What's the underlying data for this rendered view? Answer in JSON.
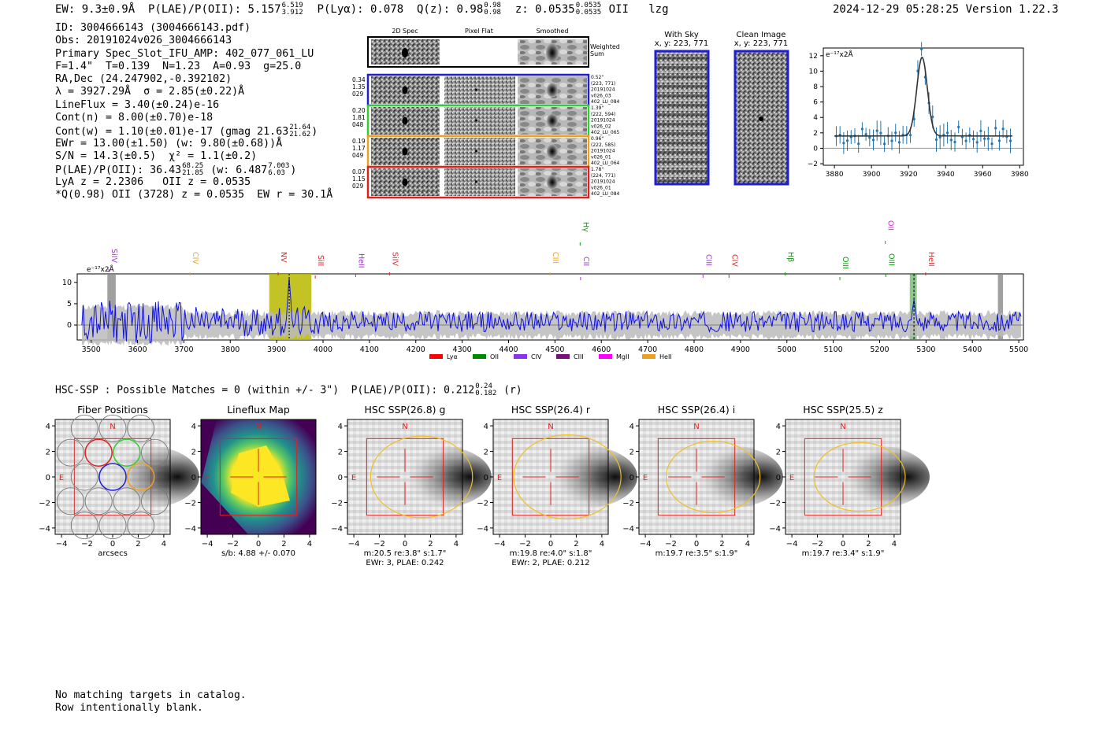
{
  "header": {
    "ew": "EW: 9.3±0.9Å",
    "plae_label": "P(LAE)/P(OII): 5.157",
    "plae_hi": "6.519",
    "plae_lo": "3.912",
    "plya": "P(Lyα): 0.078",
    "qz_label": "Q(z): 0.98",
    "qz_hi": "0.98",
    "qz_lo": "0.98",
    "z_label": "z: 0.0535",
    "z_hi": "0.0535",
    "z_lo": "0.0535",
    "line": "OII",
    "tag": "lzg",
    "timestamp": "2024-12-29 05:28:25",
    "version": "Version 1.22.3"
  },
  "info": {
    "id": "ID: 3004666143 (3004666143.pdf)",
    "obs": "Obs: 20191024v026_3004666143",
    "primary": "Primary Spec_Slot_IFU_AMP: 402_077_061_LU",
    "fiber": "F=1.4\"  T=0.139  N=1.23  A=0.93  g=25.0",
    "radec": "RA,Dec (24.247902,-0.392102)",
    "lambda": "λ = 3927.29Å  σ = 2.85(±0.22)Å",
    "lineflux": "LineFlux = 3.40(±0.24)e-16",
    "contn": "Cont(n) = 8.00(±0.70)e-18",
    "contw": "Cont(w) = 1.10(±0.01)e-17 (gmag 21.63",
    "contw_hi": "21.64",
    "contw_lo": "21.62",
    "ewr": "EWr = 13.00(±1.50) (w: 9.80(±0.68))Å",
    "sn": "S/N = 14.3(±0.5)  χ² = 1.1(±0.2)",
    "plae2": "P(LAE)/P(OII): 36.43",
    "plae2_hi": "68.25",
    "plae2_lo": "21.85",
    "plae2_w": "(w: 6.487",
    "plae2_w_hi": "7.003",
    "plae2_w_lo": "6.03",
    "lya": "LyA z = 2.2306   OII z = 0.0535",
    "q": "*Q(0.98) OII (3728) z = 0.0535  EW r = 30.1Å"
  },
  "stamps": {
    "col_labels": [
      "2D Spec",
      "Pixel Flat",
      "Smoothed"
    ],
    "weighted": [
      "Weighted",
      "Sum"
    ],
    "rows": [
      {
        "w": [
          "0.34",
          "1.35",
          "029"
        ],
        "info": [
          "0.52\"",
          "(223, 771)",
          "20191024",
          "v026_03",
          "402_LU_084"
        ],
        "color": "#1f1fd0"
      },
      {
        "w": [
          "0.20",
          "1.81",
          "048"
        ],
        "info": [
          "1.39\"",
          "(222, 594)",
          "20191024",
          "v026_02",
          "402_LU_065"
        ],
        "color": "#33cc33"
      },
      {
        "w": [
          "0.19",
          "1.17",
          "049"
        ],
        "info": [
          "0.96\"",
          "(222, 585)",
          "20191024",
          "v026_01",
          "402_LU_064"
        ],
        "color": "#f0a020"
      },
      {
        "w": [
          "0.07",
          "1.15",
          "029"
        ],
        "info": [
          "1.78\"",
          "(224, 771)",
          "20191024",
          "v026_01",
          "402_LU_084"
        ],
        "color": "#e02020"
      }
    ]
  },
  "sky": {
    "with_sky": "With Sky",
    "with_sky_xy": "x, y: 223, 771",
    "clean": "Clean Image",
    "clean_xy": "x, y: 223, 771"
  },
  "zoom_chart": {
    "unit": "e⁻¹⁷x2Å",
    "xticks": [
      "3880",
      "3900",
      "3920",
      "3940",
      "3960",
      "3980"
    ],
    "yticks": [
      "−2",
      "0",
      "2",
      "4",
      "6",
      "8",
      "10",
      "12"
    ]
  },
  "spectrum": {
    "unit": "e⁻¹⁷x2Å",
    "xticks": [
      "3500",
      "3600",
      "3700",
      "3800",
      "3900",
      "4000",
      "4100",
      "4200",
      "4300",
      "4400",
      "4500",
      "4600",
      "4700",
      "4800",
      "4900",
      "5000",
      "5100",
      "5200",
      "5300",
      "5400",
      "5500"
    ],
    "yticks": [
      "0",
      "5",
      "10"
    ],
    "lines": [
      {
        "label": "SiIV",
        "color": "#9933cc"
      },
      {
        "label": "CIV",
        "color": "#f0a020"
      },
      {
        "label": "NV",
        "color": "#e02020"
      },
      {
        "label": "SiII",
        "color": "#e02020"
      },
      {
        "label": "HeII",
        "color": "#9933cc"
      },
      {
        "label": "SiIV",
        "color": "#e02020"
      },
      {
        "label": "CIII",
        "color": "#f0a020"
      },
      {
        "label": "Hγ",
        "color": "#119911"
      },
      {
        "label": "CII",
        "color": "#9933cc"
      },
      {
        "label": "CIII",
        "color": "#9933cc"
      },
      {
        "label": "CIV",
        "color": "#e02020"
      },
      {
        "label": "Hβ",
        "color": "#119911"
      },
      {
        "label": "OIII",
        "color": "#119911"
      },
      {
        "label": "OII",
        "color": "#dd22dd"
      },
      {
        "label": "OIII",
        "color": "#119911"
      },
      {
        "label": "HeII",
        "color": "#e02020"
      }
    ],
    "legend": [
      {
        "label": "Lyα",
        "color": "#ff0000"
      },
      {
        "label": "OII",
        "color": "#008800"
      },
      {
        "label": "CIV",
        "color": "#8833ee"
      },
      {
        "label": "CIII",
        "color": "#771177"
      },
      {
        "label": "MgII",
        "color": "#ff00ff"
      },
      {
        "label": "HeII",
        "color": "#f0a020"
      }
    ]
  },
  "hsc": {
    "line": "HSC-SSP : Possible Matches = 0 (within +/- 3\")  P(LAE)/P(OII): 0.212",
    "hi": "0.24",
    "lo": "0.182",
    "band": "(r)"
  },
  "panels": [
    {
      "title": "Fiber Positions",
      "cap1": "arcsecs",
      "cap2": ""
    },
    {
      "title": "Lineflux Map",
      "cap1": "s/b: 4.88 +/- 0.070",
      "cap2": ""
    },
    {
      "title": "HSC SSP(26.8) g",
      "cap1": "m:20.5  re:3.8\"  s:1.7\"",
      "cap2": "EWr: 3, PLAE: 0.242"
    },
    {
      "title": "HSC SSP(26.4) r",
      "cap1": "m:19.8  re:4.0\"  s:1.8\"",
      "cap2": "EWr: 2, PLAE: 0.212"
    },
    {
      "title": "HSC SSP(26.4) i",
      "cap1": "m:19.7  re:3.5\"  s:1.9\"",
      "cap2": ""
    },
    {
      "title": "HSC SSP(25.5) z",
      "cap1": "m:19.7  re:3.4\"  s:1.9\"",
      "cap2": ""
    }
  ],
  "panel_axes": {
    "ticks": [
      "−4",
      "−2",
      "0",
      "2",
      "4"
    ],
    "north": "N",
    "east": "E"
  },
  "footer": {
    "line1": "No matching targets in catalog.",
    "line2": "Row intentionally blank."
  }
}
